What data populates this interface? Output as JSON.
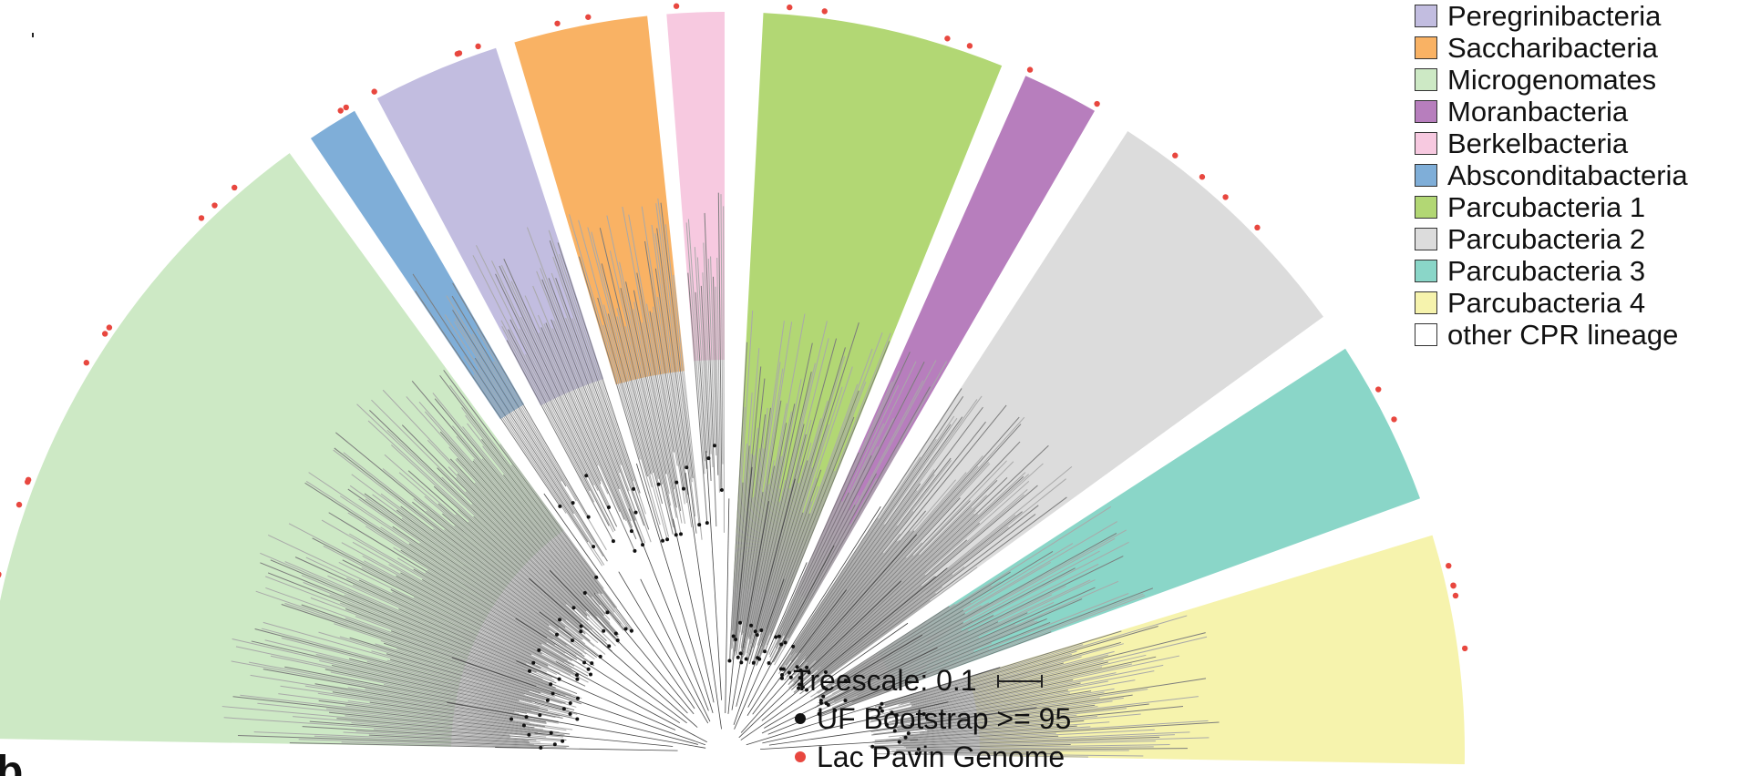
{
  "legend": {
    "items": [
      {
        "label": "Peregrinibacteria",
        "color": "#c2bde0"
      },
      {
        "label": "Saccharibacteria",
        "color": "#f9b264"
      },
      {
        "label": "Microgenomates",
        "color": "#cde9c5"
      },
      {
        "label": "Moranbacteria",
        "color": "#b77ebd"
      },
      {
        "label": "Berkelbacteria",
        "color": "#f7c9e0"
      },
      {
        "label": "Absconditabacteria",
        "color": "#7faed8"
      },
      {
        "label": "Parcubacteria 1",
        "color": "#b2d774"
      },
      {
        "label": "Parcubacteria 2",
        "color": "#dcdcdc"
      },
      {
        "label": "Parcubacteria 3",
        "color": "#8ad6c8"
      },
      {
        "label": "Parcubacteria 4",
        "color": "#f6f3ad"
      },
      {
        "label": "other CPR lineage",
        "color": "#ffffff"
      }
    ]
  },
  "key": {
    "treescale": "Treescale: 0.1",
    "bootstrap": "UF Bootstrap >= 95",
    "genome": "Lac Pavin Genome",
    "bootstrap_color": "#111111",
    "genome_color": "#e8473f"
  },
  "panel_letter": "b",
  "clades": [
    {
      "name": "Microgenomates",
      "color": "#cde9c5",
      "from": 181,
      "to": 234
    },
    {
      "name": "Absconditabacteria",
      "color": "#7faed8",
      "from": 236,
      "to": 240
    },
    {
      "name": "Peregrinibacteria",
      "color": "#c2bde0",
      "from": 242,
      "to": 252
    },
    {
      "name": "Saccharibacteria",
      "color": "#f9b264",
      "from": 253.5,
      "to": 264
    },
    {
      "name": "Berkelbacteria",
      "color": "#f7c9e0",
      "from": 265.5,
      "to": 270
    },
    {
      "name": "Parcubacteria 1",
      "color": "#b2d774",
      "from": 273,
      "to": 292
    },
    {
      "name": "Moranbacteria",
      "color": "#b77ebd",
      "from": 294,
      "to": 300
    },
    {
      "name": "Parcubacteria 2",
      "color": "#dcdcdc",
      "from": 303,
      "to": 324
    },
    {
      "name": "Parcubacteria 3",
      "color": "#8ad6c8",
      "from": 327,
      "to": 340
    },
    {
      "name": "Parcubacteria 4",
      "color": "#f6f3ad",
      "from": 343,
      "to": 361
    }
  ]
}
